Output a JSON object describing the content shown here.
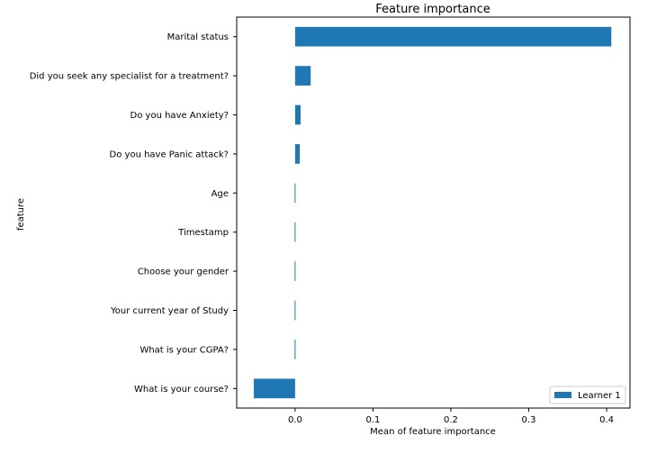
{
  "chart_data": {
    "type": "bar",
    "orientation": "horizontal",
    "title": "Feature importance",
    "xlabel": "Mean of feature importance",
    "ylabel": "feature",
    "xlim": [
      -0.075,
      0.43
    ],
    "xticks": [
      0.0,
      0.1,
      0.2,
      0.3,
      0.4
    ],
    "xtick_labels": [
      "0.0",
      "0.1",
      "0.2",
      "0.3",
      "0.4"
    ],
    "grid": false,
    "legend_position": "bottom-right",
    "bar_color": "#1f77b4",
    "categories": [
      "Marital status",
      "Did you seek any specialist for a treatment?",
      "Do you have Anxiety?",
      "Do you have Panic attack?",
      "Age",
      "Timestamp",
      "Choose your gender",
      "Your current year of Study",
      "What is your CGPA?",
      "What is your course?"
    ],
    "series": [
      {
        "name": "Learner 1",
        "values": [
          0.406,
          0.02,
          0.007,
          0.006,
          0.001,
          0.0,
          0.0,
          -0.001,
          -0.001,
          -0.053
        ]
      }
    ]
  }
}
